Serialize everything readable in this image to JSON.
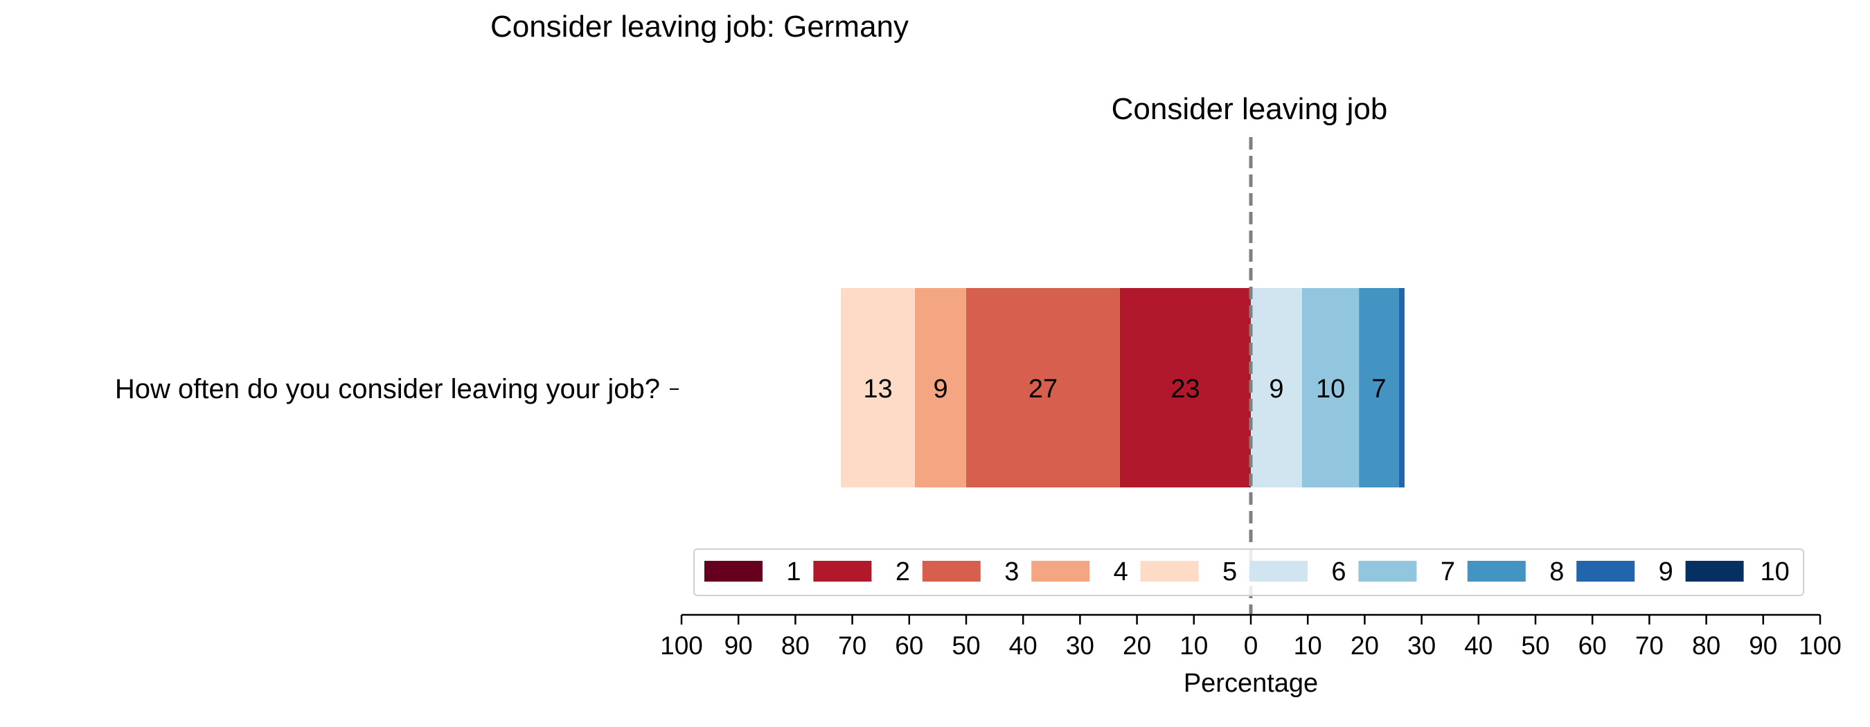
{
  "chart_data": {
    "type": "bar",
    "orientation": "horizontal",
    "stacked": true,
    "diverging": true,
    "title": "Consider leaving job: Germany",
    "subtitle": "Consider leaving job",
    "xlabel": "Percentage",
    "ylabel": "",
    "categories": [
      "How often do you consider leaving your job?"
    ],
    "xlim": [
      -100,
      100
    ],
    "xticks": [
      -100,
      -90,
      -80,
      -70,
      -60,
      -50,
      -40,
      -30,
      -20,
      -10,
      0,
      10,
      20,
      30,
      40,
      50,
      60,
      70,
      80,
      90,
      100
    ],
    "xtick_labels": [
      "100",
      "90",
      "80",
      "70",
      "60",
      "50",
      "40",
      "30",
      "20",
      "10",
      "0",
      "10",
      "20",
      "30",
      "40",
      "50",
      "60",
      "70",
      "80",
      "90",
      "100"
    ],
    "grid": false,
    "center_line": {
      "value": 0,
      "style": "dashed"
    },
    "legend_position": "bottom",
    "series": [
      {
        "name": "1",
        "color": "#67001f",
        "values": [
          0
        ],
        "side": "left",
        "label": ""
      },
      {
        "name": "2",
        "color": "#b2182b",
        "values": [
          23
        ],
        "side": "left",
        "label": "23"
      },
      {
        "name": "3",
        "color": "#d6604d",
        "values": [
          27
        ],
        "side": "left",
        "label": "27"
      },
      {
        "name": "4",
        "color": "#f4a582",
        "values": [
          9
        ],
        "side": "left",
        "label": "9"
      },
      {
        "name": "5",
        "color": "#fddbc7",
        "values": [
          13
        ],
        "side": "left",
        "label": "13"
      },
      {
        "name": "6",
        "color": "#d1e5f0",
        "values": [
          9
        ],
        "side": "right",
        "label": "9"
      },
      {
        "name": "7",
        "color": "#92c5de",
        "values": [
          10
        ],
        "side": "right",
        "label": "10"
      },
      {
        "name": "8",
        "color": "#4393c3",
        "values": [
          7
        ],
        "side": "right",
        "label": "7"
      },
      {
        "name": "9",
        "color": "#2166ac",
        "values": [
          1
        ],
        "side": "right",
        "label": ""
      },
      {
        "name": "10",
        "color": "#053061",
        "values": [
          0
        ],
        "side": "right",
        "label": ""
      }
    ]
  }
}
